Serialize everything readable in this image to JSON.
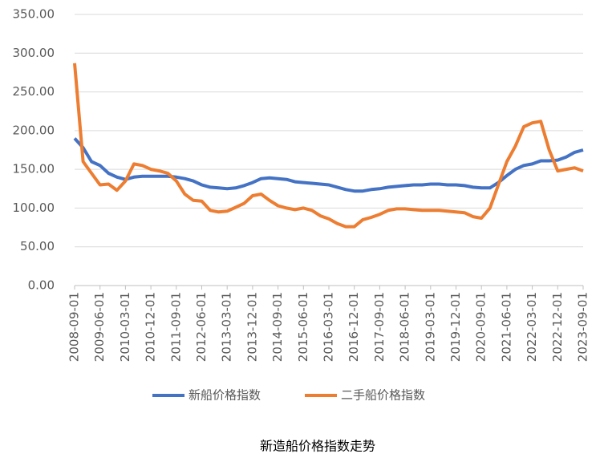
{
  "chart_data": {
    "type": "line",
    "title": "新造船价格指数走势",
    "x": [
      "2008-09-01",
      "2008-12-01",
      "2009-03-01",
      "2009-06-01",
      "2009-09-01",
      "2009-12-01",
      "2010-03-01",
      "2010-06-01",
      "2010-09-01",
      "2010-12-01",
      "2011-03-01",
      "2011-06-01",
      "2011-09-01",
      "2011-12-01",
      "2012-03-01",
      "2012-06-01",
      "2012-09-01",
      "2012-12-01",
      "2013-03-01",
      "2013-06-01",
      "2013-09-01",
      "2013-12-01",
      "2014-03-01",
      "2014-06-01",
      "2014-09-01",
      "2014-12-01",
      "2015-03-01",
      "2015-06-01",
      "2015-09-01",
      "2015-12-01",
      "2016-03-01",
      "2016-06-01",
      "2016-09-01",
      "2016-12-01",
      "2017-03-01",
      "2017-06-01",
      "2017-09-01",
      "2017-12-01",
      "2018-03-01",
      "2018-06-01",
      "2018-09-01",
      "2018-12-01",
      "2019-03-01",
      "2019-06-01",
      "2019-09-01",
      "2019-12-01",
      "2020-03-01",
      "2020-06-01",
      "2020-09-01",
      "2020-12-01",
      "2021-03-01",
      "2021-06-01",
      "2021-09-01",
      "2021-12-01",
      "2022-03-01",
      "2022-06-01",
      "2022-09-01",
      "2022-12-01",
      "2023-03-01",
      "2023-06-01",
      "2023-09-01"
    ],
    "series": [
      {
        "name": "新船价格指数",
        "color": "#4472c4",
        "values": [
          190,
          178,
          160,
          155,
          145,
          140,
          137,
          140,
          141,
          141,
          141,
          141,
          140,
          138,
          135,
          130,
          127,
          126,
          125,
          126,
          129,
          133,
          138,
          139,
          138,
          137,
          134,
          133,
          132,
          131,
          130,
          127,
          124,
          122,
          122,
          124,
          125,
          127,
          128,
          129,
          130,
          130,
          131,
          131,
          130,
          130,
          129,
          127,
          126,
          126,
          133,
          142,
          150,
          155,
          157,
          161,
          161,
          162,
          166,
          172,
          175
        ]
      },
      {
        "name": "二手船价格指数",
        "color": "#ed7d31",
        "values": [
          287,
          160,
          145,
          130,
          131,
          123,
          135,
          157,
          155,
          150,
          148,
          145,
          135,
          118,
          110,
          109,
          97,
          95,
          96,
          101,
          106,
          116,
          118,
          110,
          103,
          100,
          98,
          100,
          97,
          90,
          86,
          80,
          76,
          76,
          85,
          88,
          92,
          97,
          99,
          99,
          98,
          97,
          97,
          97,
          96,
          95,
          94,
          89,
          87,
          100,
          130,
          160,
          180,
          205,
          210,
          212,
          175,
          148,
          150,
          152,
          148
        ]
      }
    ],
    "xlim": [
      "2008-09-01",
      "2023-09-01"
    ],
    "xticks": [
      "2008-09-01",
      "2009-06-01",
      "2010-03-01",
      "2010-12-01",
      "2011-09-01",
      "2012-06-01",
      "2013-03-01",
      "2013-12-01",
      "2014-09-01",
      "2015-06-01",
      "2016-03-01",
      "2016-12-01",
      "2017-09-01",
      "2018-06-01",
      "2019-03-01",
      "2019-12-01",
      "2020-09-01",
      "2021-06-01",
      "2022-03-01",
      "2022-12-01",
      "2023-09-01"
    ],
    "ylim": [
      0,
      350
    ],
    "yticks": [
      {
        "value": 0,
        "label": "0.00"
      },
      {
        "value": 50,
        "label": "50.00"
      },
      {
        "value": 100,
        "label": "100.00"
      },
      {
        "value": 150,
        "label": "150.00"
      },
      {
        "value": 200,
        "label": "200.00"
      },
      {
        "value": 250,
        "label": "250.00"
      },
      {
        "value": 300,
        "label": "300.00"
      },
      {
        "value": 350,
        "label": "350.00"
      }
    ],
    "grid": true,
    "legend": "bottom"
  }
}
